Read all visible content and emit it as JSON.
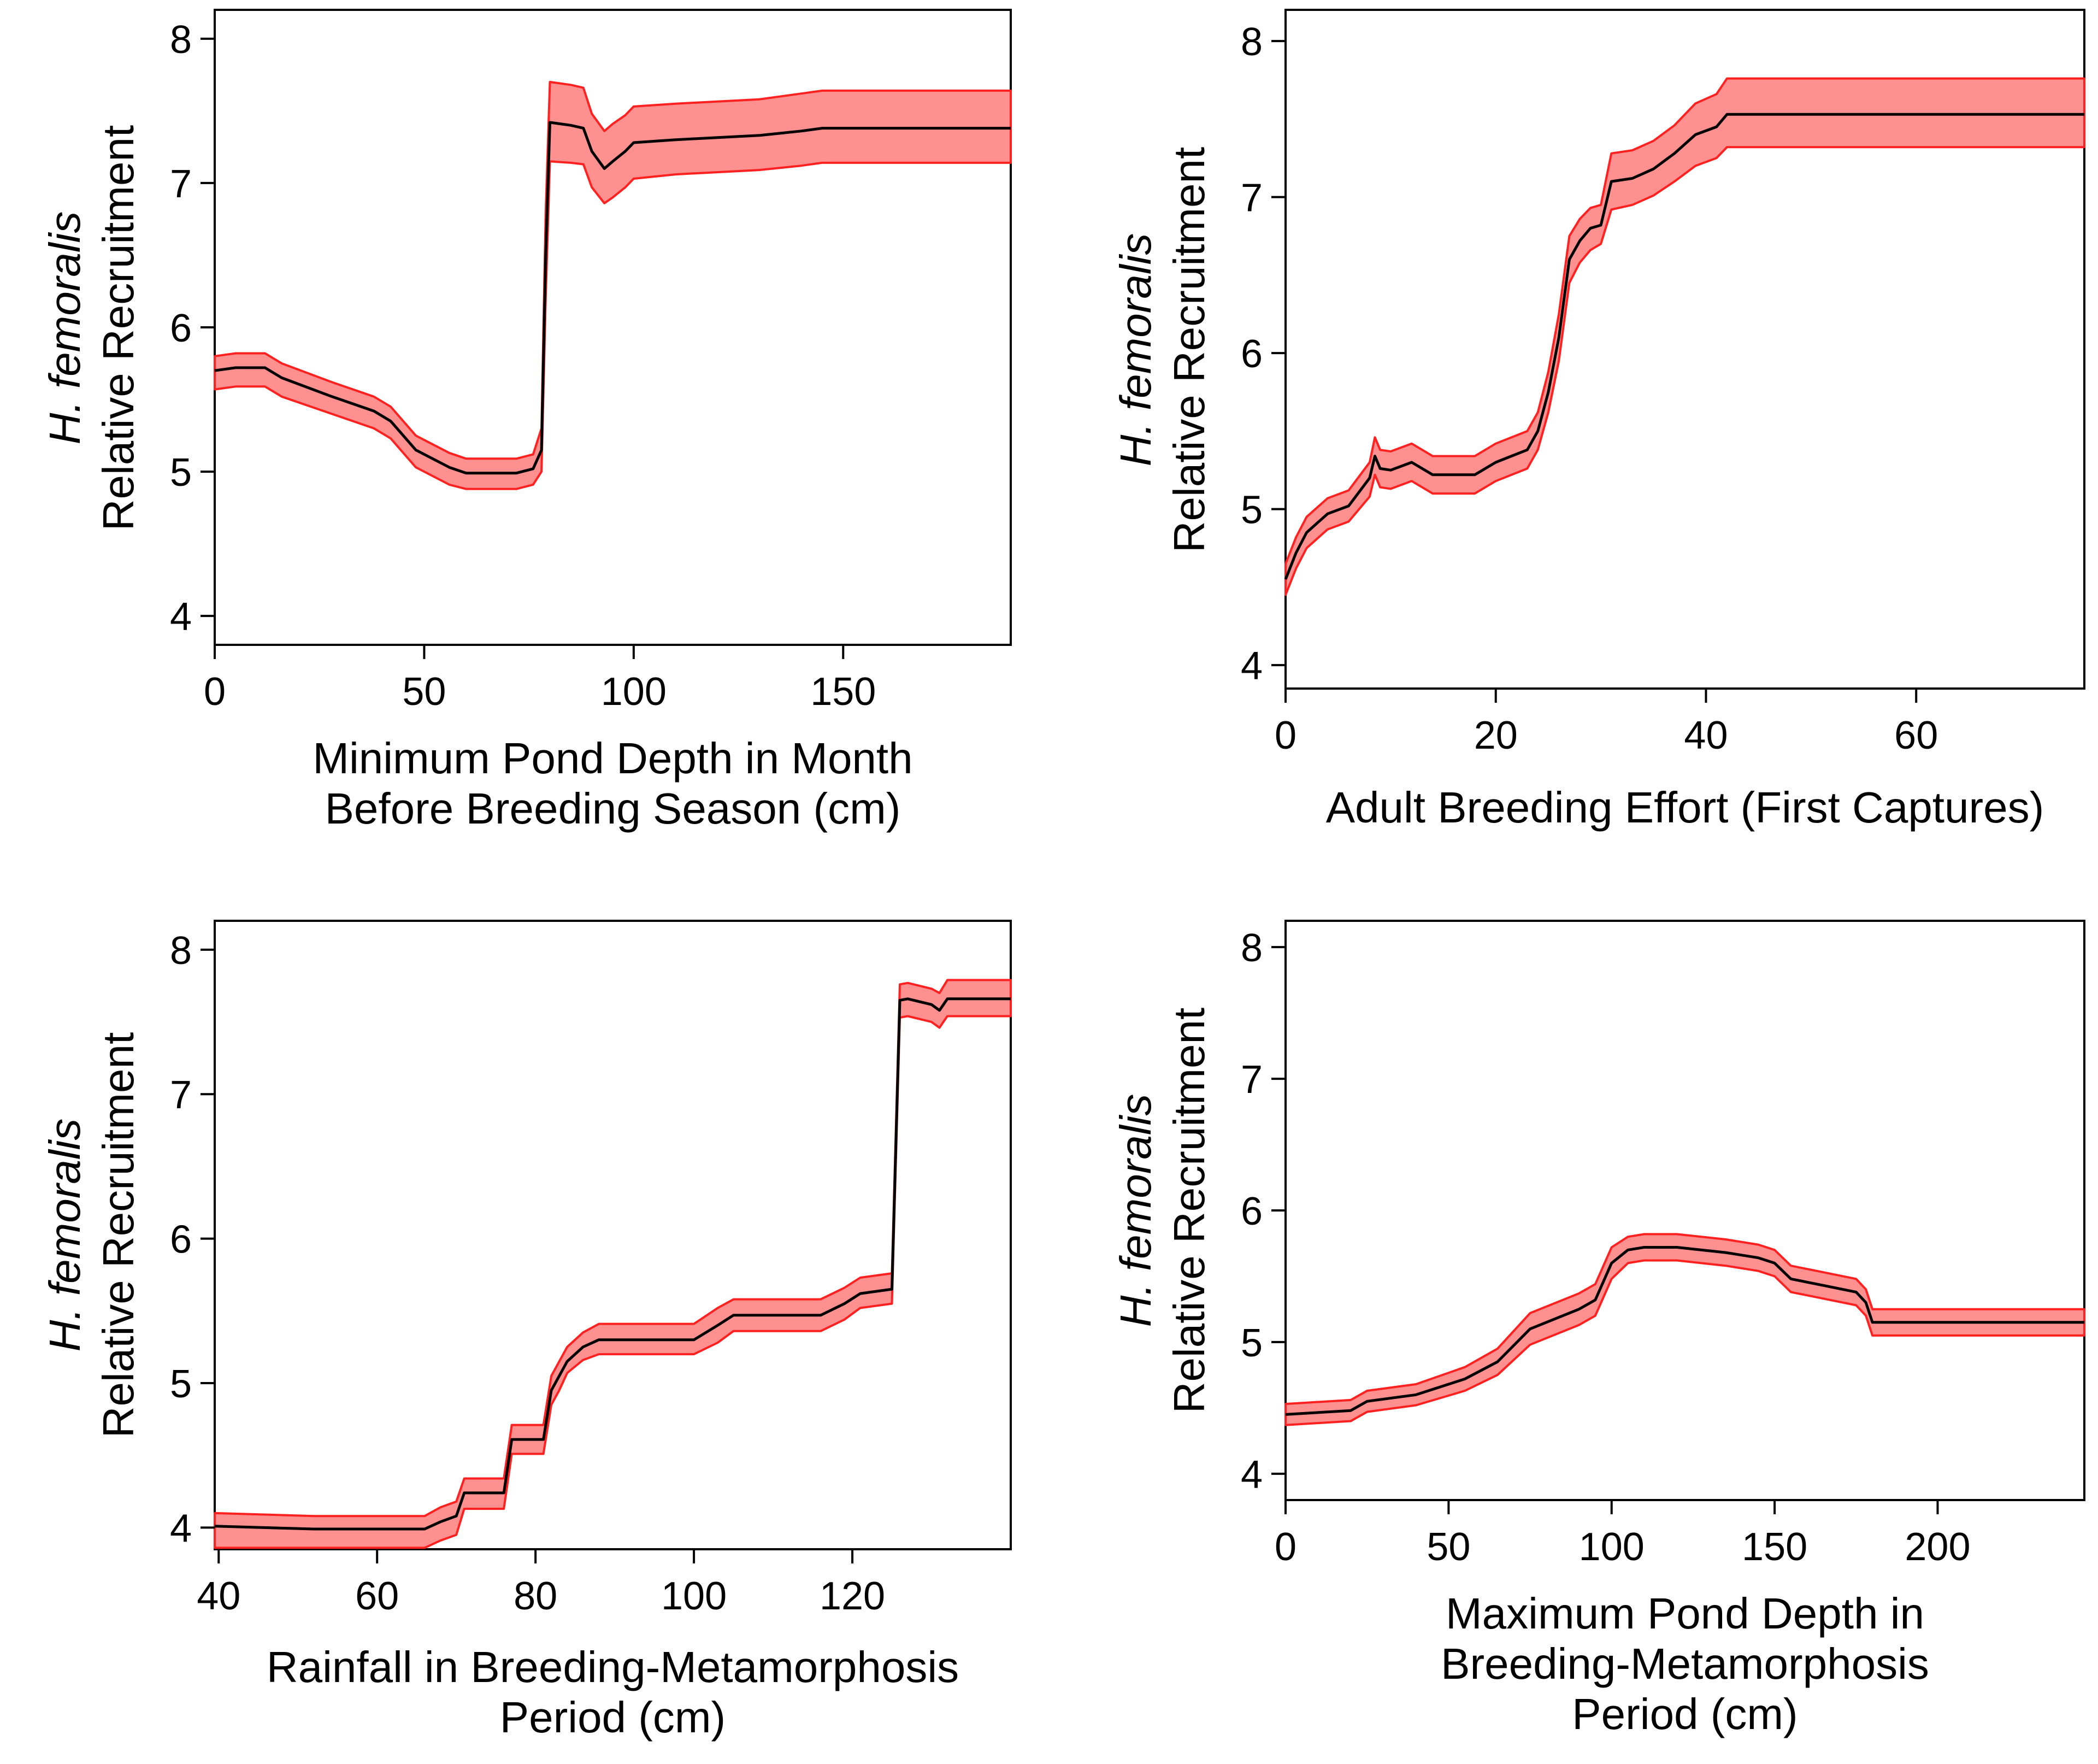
{
  "colors": {
    "line": "#000000",
    "band_fill": "#ff9090",
    "band_edge": "#ff2020",
    "axis": "#000000"
  },
  "chart_data": [
    {
      "type": "line",
      "ylabel_species": "H. femoralis",
      "ylabel": "Relative Recruitment",
      "xlabel_lines": [
        "Minimum Pond Depth in Month",
        "Before Breeding Season (cm)"
      ],
      "xlim": [
        0,
        190
      ],
      "ylim": [
        3.8,
        8.2
      ],
      "xticks": [
        0,
        50,
        100,
        150
      ],
      "yticks": [
        4,
        5,
        6,
        7,
        8
      ],
      "series": [
        {
          "name": "H. femoralis",
          "x": [
            0,
            5,
            12,
            16,
            28,
            38,
            42,
            48,
            56,
            60,
            72,
            76,
            78,
            79,
            80,
            85,
            88,
            90,
            93,
            95,
            98,
            100,
            110,
            130,
            140,
            145,
            190
          ],
          "y": [
            5.7,
            5.72,
            5.72,
            5.65,
            5.52,
            5.42,
            5.35,
            5.15,
            5.03,
            4.99,
            4.99,
            5.02,
            5.15,
            6.5,
            7.42,
            7.4,
            7.38,
            7.22,
            7.1,
            7.15,
            7.22,
            7.28,
            7.3,
            7.33,
            7.36,
            7.38,
            7.38
          ],
          "lower": [
            5.57,
            5.59,
            5.59,
            5.52,
            5.4,
            5.3,
            5.23,
            5.03,
            4.91,
            4.88,
            4.88,
            4.91,
            5.0,
            6.2,
            7.15,
            7.14,
            7.13,
            6.97,
            6.86,
            6.9,
            6.97,
            7.03,
            7.06,
            7.09,
            7.12,
            7.14,
            7.14
          ],
          "upper": [
            5.8,
            5.82,
            5.82,
            5.75,
            5.62,
            5.52,
            5.45,
            5.25,
            5.13,
            5.09,
            5.09,
            5.12,
            5.3,
            6.8,
            7.7,
            7.68,
            7.66,
            7.48,
            7.36,
            7.41,
            7.47,
            7.53,
            7.55,
            7.58,
            7.62,
            7.64,
            7.64
          ]
        }
      ]
    },
    {
      "type": "line",
      "ylabel_species": "H. femoralis",
      "ylabel": "Relative Recruitment",
      "xlabel_lines": [
        "Adult Breeding Effort (First Captures)"
      ],
      "xlim": [
        0,
        76
      ],
      "ylim": [
        3.85,
        8.2
      ],
      "xticks": [
        0,
        20,
        40,
        60
      ],
      "yticks": [
        4,
        5,
        6,
        7,
        8
      ],
      "series": [
        {
          "name": "H. femoralis",
          "x": [
            0,
            1,
            2,
            4,
            6,
            8,
            8.5,
            9,
            10,
            12,
            14,
            18,
            20,
            23,
            24,
            25,
            26,
            27,
            28,
            29,
            30,
            31,
            33,
            35,
            37,
            39,
            41,
            42,
            76
          ],
          "y": [
            4.55,
            4.72,
            4.85,
            4.97,
            5.02,
            5.2,
            5.34,
            5.26,
            5.25,
            5.3,
            5.22,
            5.22,
            5.3,
            5.38,
            5.5,
            5.75,
            6.1,
            6.6,
            6.72,
            6.8,
            6.82,
            7.1,
            7.12,
            7.18,
            7.28,
            7.4,
            7.45,
            7.53,
            7.53
          ],
          "lower": [
            4.45,
            4.62,
            4.75,
            4.87,
            4.92,
            5.08,
            5.22,
            5.14,
            5.13,
            5.18,
            5.1,
            5.1,
            5.18,
            5.26,
            5.38,
            5.62,
            5.95,
            6.45,
            6.58,
            6.66,
            6.7,
            6.92,
            6.95,
            7.01,
            7.1,
            7.2,
            7.25,
            7.32,
            7.32
          ],
          "upper": [
            4.65,
            4.82,
            4.95,
            5.07,
            5.12,
            5.3,
            5.46,
            5.38,
            5.37,
            5.42,
            5.34,
            5.34,
            5.42,
            5.5,
            5.62,
            5.88,
            6.25,
            6.75,
            6.86,
            6.93,
            6.95,
            7.28,
            7.3,
            7.36,
            7.46,
            7.6,
            7.66,
            7.76,
            7.76
          ]
        }
      ]
    },
    {
      "type": "line",
      "ylabel_species": "H. femoralis",
      "ylabel": "Relative Recruitment",
      "xlabel_lines": [
        "Rainfall in Breeding-Metamorphosis",
        "Period (cm)"
      ],
      "xlim": [
        39.5,
        140
      ],
      "ylim": [
        3.85,
        8.2
      ],
      "xticks": [
        40,
        60,
        80,
        100,
        120
      ],
      "yticks": [
        4,
        5,
        6,
        7,
        8
      ],
      "series": [
        {
          "name": "H. femoralis",
          "x": [
            39.5,
            52,
            66,
            68,
            70,
            71,
            76,
            77,
            81,
            82,
            83,
            84,
            86,
            88,
            100,
            103,
            105,
            116,
            119,
            121,
            125,
            126,
            127,
            130,
            131,
            132,
            140
          ],
          "y": [
            4.01,
            3.99,
            3.99,
            4.04,
            4.08,
            4.24,
            4.24,
            4.61,
            4.61,
            4.95,
            5.05,
            5.15,
            5.25,
            5.3,
            5.3,
            5.4,
            5.47,
            5.47,
            5.55,
            5.62,
            5.65,
            7.65,
            7.66,
            7.62,
            7.58,
            7.66,
            7.66
          ],
          "lower": [
            3.86,
            3.86,
            3.86,
            3.91,
            3.95,
            4.13,
            4.13,
            4.51,
            4.51,
            4.85,
            4.95,
            5.07,
            5.16,
            5.2,
            5.2,
            5.28,
            5.36,
            5.36,
            5.44,
            5.52,
            5.55,
            7.53,
            7.54,
            7.5,
            7.46,
            7.54,
            7.54
          ],
          "upper": [
            4.1,
            4.08,
            4.08,
            4.14,
            4.18,
            4.34,
            4.34,
            4.71,
            4.71,
            5.05,
            5.15,
            5.25,
            5.35,
            5.41,
            5.41,
            5.52,
            5.58,
            5.58,
            5.66,
            5.73,
            5.76,
            7.76,
            7.77,
            7.73,
            7.7,
            7.79,
            7.79
          ]
        }
      ]
    },
    {
      "type": "line",
      "ylabel_species": "H. femoralis",
      "ylabel": "Relative Recruitment",
      "xlabel_lines": [
        "Maximum Pond Depth in",
        "Breeding-Metamorphosis",
        "Period (cm)"
      ],
      "xlim": [
        0,
        245
      ],
      "ylim": [
        3.8,
        8.2
      ],
      "xticks": [
        0,
        50,
        100,
        150,
        200
      ],
      "yticks": [
        4,
        5,
        6,
        7,
        8
      ],
      "series": [
        {
          "name": "H. femoralis",
          "x": [
            0,
            20,
            25,
            40,
            55,
            65,
            75,
            90,
            95,
            100,
            105,
            110,
            120,
            135,
            145,
            150,
            155,
            165,
            175,
            178,
            180,
            245
          ],
          "y": [
            4.45,
            4.48,
            4.55,
            4.6,
            4.72,
            4.85,
            5.1,
            5.25,
            5.32,
            5.6,
            5.7,
            5.72,
            5.72,
            5.68,
            5.64,
            5.6,
            5.48,
            5.43,
            5.38,
            5.3,
            5.15,
            5.15
          ],
          "lower": [
            4.37,
            4.4,
            4.47,
            4.52,
            4.63,
            4.75,
            4.98,
            5.13,
            5.2,
            5.48,
            5.6,
            5.62,
            5.62,
            5.58,
            5.54,
            5.5,
            5.38,
            5.33,
            5.28,
            5.2,
            5.05,
            5.05
          ],
          "upper": [
            4.53,
            4.56,
            4.63,
            4.68,
            4.81,
            4.95,
            5.22,
            5.37,
            5.44,
            5.72,
            5.8,
            5.82,
            5.82,
            5.78,
            5.74,
            5.7,
            5.58,
            5.53,
            5.48,
            5.4,
            5.25,
            5.25
          ]
        }
      ]
    }
  ]
}
